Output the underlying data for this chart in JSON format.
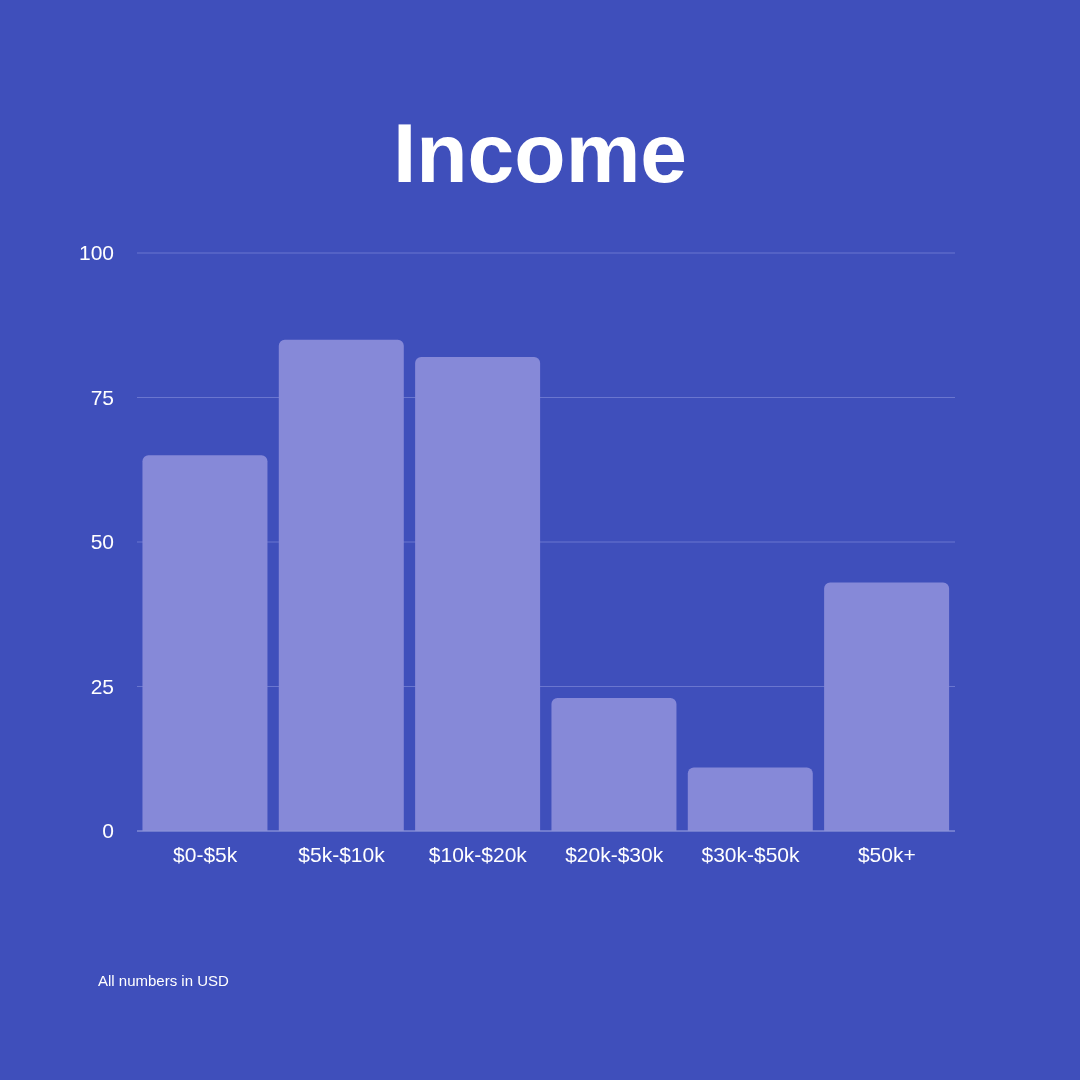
{
  "chart_data": {
    "type": "bar",
    "title": "Income",
    "categories": [
      "$0-$5k",
      "$5k-$10k",
      "$10k-$20k",
      "$20k-$30k",
      "$30k-$50k",
      "$50k+"
    ],
    "values": [
      65,
      85,
      82,
      23,
      11,
      43
    ],
    "color": "#8689d8",
    "ylim": [
      0,
      100
    ],
    "yticks": [
      0,
      25,
      50,
      75,
      100
    ],
    "grid": "y",
    "annotations": [
      "All numbers in USD"
    ]
  }
}
